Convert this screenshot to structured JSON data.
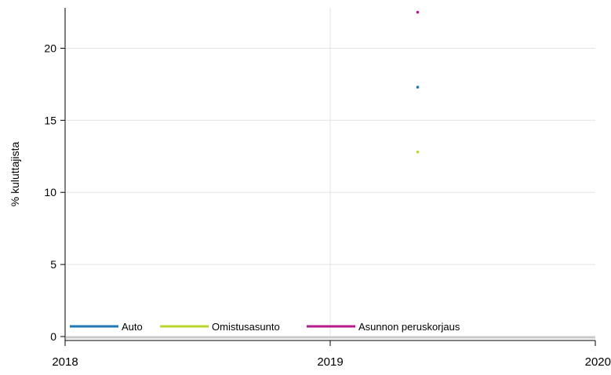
{
  "chart_data": {
    "type": "line",
    "title": "",
    "xlabel": "",
    "ylabel": "% kuluttajista",
    "x_ticks": [
      "2018",
      "2019",
      "2020"
    ],
    "xlim": [
      2018,
      2020
    ],
    "y_ticks": [
      0,
      5,
      10,
      15,
      20
    ],
    "ylim": [
      0,
      22.8
    ],
    "grid": true,
    "legend_position": "bottom-left",
    "series": [
      {
        "name": "Auto",
        "color": "#1f77b4",
        "points": [
          {
            "x": 2019.33,
            "y": 17.3
          }
        ]
      },
      {
        "name": "Omistusasunto",
        "color": "#bcd52d",
        "points": [
          {
            "x": 2019.33,
            "y": 12.8
          }
        ]
      },
      {
        "name": "Asunnon peruskorjaus",
        "color": "#b5188f",
        "points": [
          {
            "x": 2019.33,
            "y": 22.5
          }
        ]
      }
    ]
  }
}
